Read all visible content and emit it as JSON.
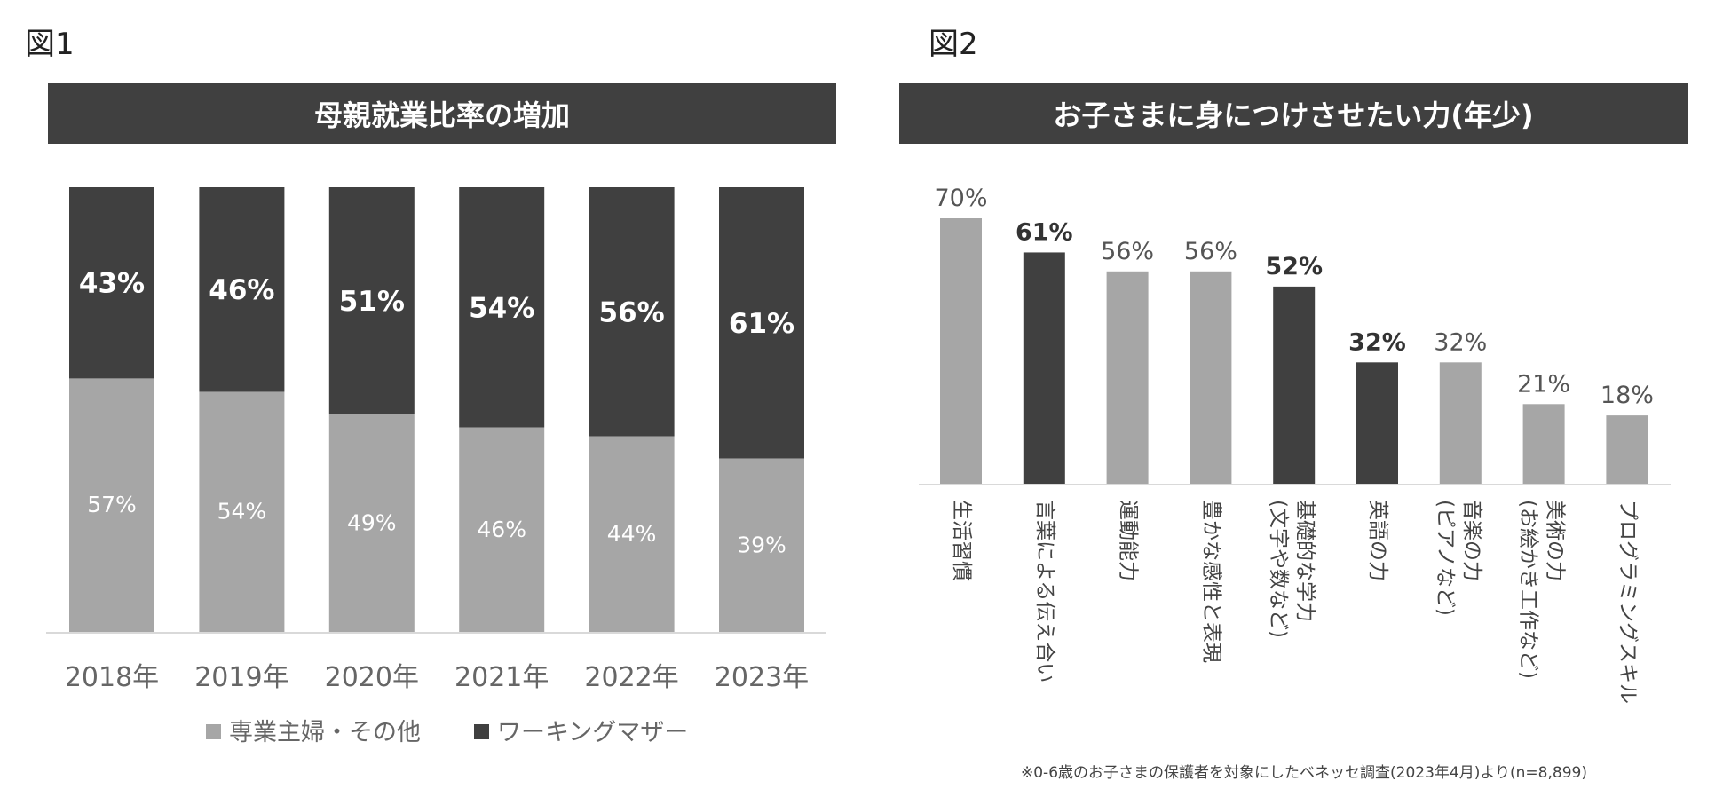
{
  "figures": {
    "fig1_label": "図1",
    "fig2_label": "図2"
  },
  "footnote": "※0-6歳のお子さまの保護者を対象にしたベネッセ調査(2023年4月)より(n=8,899)",
  "colors": {
    "dark": "#404040",
    "light": "#a6a6a6",
    "axis": "#d9d9d9",
    "text": "#555555"
  },
  "chart_data": [
    {
      "type": "bar",
      "stacked": true,
      "title": "母親就業比率の増加",
      "categories": [
        "2018年",
        "2019年",
        "2020年",
        "2021年",
        "2022年",
        "2023年"
      ],
      "series": [
        {
          "name": "専業主婦・その他",
          "values": [
            57,
            54,
            49,
            46,
            44,
            39
          ],
          "labels": [
            "57%",
            "54%",
            "49%",
            "46%",
            "44%",
            "39%"
          ]
        },
        {
          "name": "ワーキングマザー",
          "values": [
            43,
            46,
            51,
            54,
            56,
            61
          ],
          "labels": [
            "43%",
            "46%",
            "51%",
            "54%",
            "56%",
            "61%"
          ]
        }
      ],
      "legend": [
        "専業主婦・その他",
        "ワーキングマザー"
      ],
      "legend_position": "bottom",
      "ylim": [
        0,
        100
      ]
    },
    {
      "type": "bar",
      "title": "お子さまに身につけさせたい力(年少)",
      "categories": [
        "生活習慣",
        "言葉による伝え合い",
        "運動能力",
        "豊かな感性と表現",
        "基礎的な学力(文字や数など)",
        "英語の力",
        "音楽の力(ピアノなど)",
        "美術の力(お絵かき工作など)",
        "プログラミングスキル"
      ],
      "category_lines": [
        [
          "生活習慣"
        ],
        [
          "言葉による伝え合い"
        ],
        [
          "運動能力"
        ],
        [
          "豊かな感性と表現"
        ],
        [
          "基礎的な学力",
          "(文字や数など)"
        ],
        [
          "英語の力"
        ],
        [
          "音楽の力",
          "(ピアノなど)"
        ],
        [
          "美術の力",
          "(お絵かき工作など)"
        ],
        [
          "プログラミングスキル"
        ]
      ],
      "values": [
        70,
        61,
        56,
        56,
        52,
        32,
        32,
        21,
        18
      ],
      "labels": [
        "70%",
        "61%",
        "56%",
        "56%",
        "52%",
        "32%",
        "32%",
        "21%",
        "18%"
      ],
      "highlight": [
        false,
        true,
        false,
        false,
        true,
        true,
        false,
        false,
        false
      ],
      "ylim": [
        0,
        80
      ]
    }
  ]
}
